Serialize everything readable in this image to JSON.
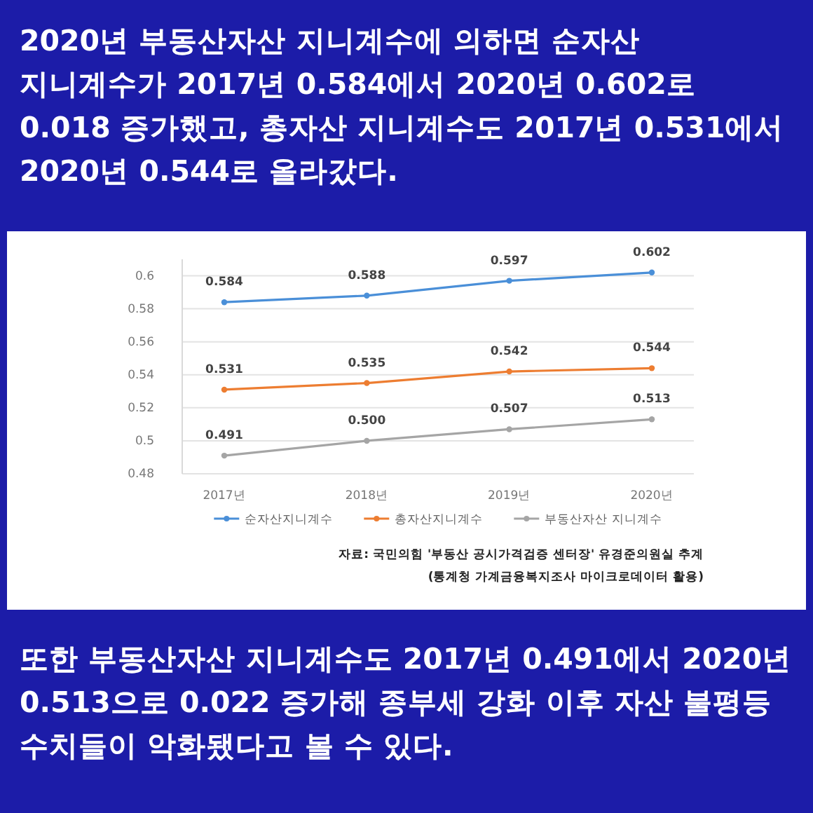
{
  "chart_data": {
    "type": "line",
    "title": "2020년 부동산자산 지니계수에 의하면 순자산 지니계수가 2017년 0.584에서 2020년 0.602로 0.018 증가했고, 총자산 지니계수도 2017년 0.531에서 2020년 0.544로 올라갔다.",
    "subtitle": "또한 부동산자산 지니계수도 2017년 0.491에서 2020년 0.513으로 0.022 증가해 종부세 강화 이후 자산 불평등 수치들이 악화됐다고 볼 수 있다.",
    "annotations": [
      "자료: 국민의힘 '부동산 공시가격검증 센터장' 유경준의원실 추계",
      "(통계청 가계금융복지조사 마이크로데이터 활용)"
    ],
    "categories": [
      "2017년",
      "2018년",
      "2019년",
      "2020년"
    ],
    "series": [
      {
        "name": "순자산지니계수",
        "color": "#4a8fd8",
        "values": [
          0.584,
          0.588,
          0.597,
          0.602
        ],
        "value_labels": [
          "0.584",
          "0.588",
          "0.597",
          "0.602"
        ]
      },
      {
        "name": "총자산지니계수",
        "color": "#ed7d31",
        "values": [
          0.531,
          0.535,
          0.542,
          0.544
        ],
        "value_labels": [
          "0.531",
          "0.535",
          "0.542",
          "0.544"
        ]
      },
      {
        "name": "부동산자산 지니계수",
        "color": "#a5a5a5",
        "values": [
          0.491,
          0.5,
          0.507,
          0.513
        ],
        "value_labels": [
          "0.491",
          "0.500",
          "0.507",
          "0.513"
        ]
      }
    ],
    "ylim": [
      0.48,
      0.61
    ],
    "yticks": [
      0.48,
      0.5,
      0.52,
      0.54,
      0.56,
      0.58,
      0.6
    ],
    "grid": "y",
    "legend": "bottom",
    "marker": "circle",
    "line_style": "solid"
  }
}
